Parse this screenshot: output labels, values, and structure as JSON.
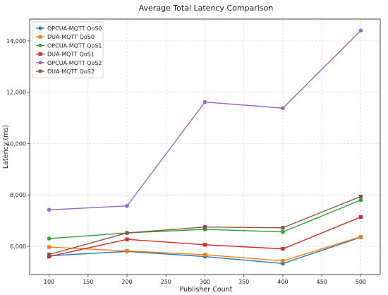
{
  "chart_data": {
    "type": "line",
    "title": "Average Total Latency Comparison",
    "xlabel": "Publisher Count",
    "ylabel": "Latency (ms)",
    "x": [
      100,
      200,
      300,
      400,
      500
    ],
    "xlim": [
      75,
      525
    ],
    "ylim": [
      4900,
      14850
    ],
    "x_ticks": [
      100,
      150,
      200,
      250,
      300,
      350,
      400,
      450,
      500
    ],
    "y_ticks": [
      6000,
      8000,
      10000,
      12000,
      14000
    ],
    "y_tick_labels": [
      "6,000",
      "8,000",
      "10,000",
      "12,000",
      "14,000"
    ],
    "grid": true,
    "legend_position": "top-left",
    "series": [
      {
        "name": "OPCUA-MQTT QoS0",
        "values": [
          5630,
          5800,
          5600,
          5330,
          6350
        ],
        "color": "#1f77b4",
        "marker": "circle"
      },
      {
        "name": "DUA-MQTT QoS0",
        "values": [
          5970,
          5820,
          5670,
          5430,
          6370
        ],
        "color": "#ff7f0e",
        "marker": "square"
      },
      {
        "name": "OPCUA-MQTT QoS1",
        "values": [
          6300,
          6520,
          6660,
          6560,
          7800
        ],
        "color": "#2ca02c",
        "marker": "circle"
      },
      {
        "name": "DUA-MQTT QoS1",
        "values": [
          5600,
          6270,
          6060,
          5900,
          7140
        ],
        "color": "#d62728",
        "marker": "square"
      },
      {
        "name": "OPCUA-MQTT QoS2",
        "values": [
          7420,
          7570,
          11620,
          11380,
          14400
        ],
        "color": "#9467bd",
        "marker": "circle"
      },
      {
        "name": "DUA-MQTT QoS2",
        "values": [
          5680,
          6520,
          6750,
          6720,
          7940
        ],
        "color": "#8c564b",
        "marker": "square"
      }
    ]
  }
}
